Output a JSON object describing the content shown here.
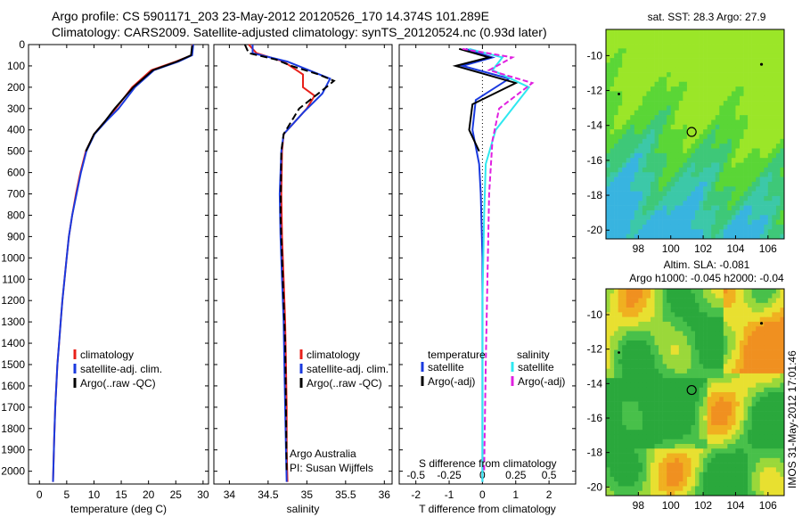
{
  "header": {
    "line1": "Argo profile: CS 5901171_203 23-May-2012 20120526_170 14.374S 101.289E",
    "line2": "Climatology: CARS2009. Satellite-adjusted climatology: synTS_20120524.nc (0.93d later)"
  },
  "colors": {
    "climatology": "#e8201a",
    "satellite": "#1a3adf",
    "argo": "#000000",
    "salinity_satellite": "#2ee8f0",
    "salinity_argo": "#e020e0"
  },
  "chart_data": [
    {
      "type": "line",
      "xlabel": "temperature (deg C)",
      "ylabel": "",
      "xlim": [
        -2,
        31
      ],
      "ylim": [
        2060,
        0
      ],
      "xticks": [
        0,
        5,
        10,
        15,
        20,
        25,
        30
      ],
      "yticks": [
        0,
        100,
        200,
        300,
        400,
        500,
        600,
        700,
        800,
        900,
        1000,
        1100,
        1200,
        1300,
        1400,
        1500,
        1600,
        1700,
        1800,
        1900,
        2000
      ],
      "legend": [
        "climatology",
        "satellite-adj. clim.",
        "Argo(..raw -QC)"
      ],
      "series": [
        {
          "name": "climatology",
          "color": "#e8201a",
          "x": [
            28.1,
            27.9,
            25.0,
            20.5,
            17.0,
            14.0,
            12.0,
            10.0,
            8.5,
            7.5,
            6.7,
            6.0,
            5.4,
            5.0,
            4.6,
            4.2,
            3.9,
            3.6,
            3.3,
            3.1,
            2.9,
            2.7,
            2.5
          ],
          "y": [
            0,
            50,
            80,
            120,
            200,
            300,
            360,
            420,
            500,
            600,
            700,
            800,
            900,
            1000,
            1100,
            1200,
            1300,
            1400,
            1500,
            1600,
            1700,
            1850,
            2050
          ]
        },
        {
          "name": "satellite-adj. clim.",
          "color": "#1a3adf",
          "x": [
            28.2,
            28.0,
            25.5,
            21.0,
            17.5,
            14.5,
            12.2,
            10.1,
            8.6,
            7.6,
            6.8,
            6.0,
            5.4,
            5.0,
            4.6,
            4.2,
            3.9,
            3.6,
            3.3,
            3.1,
            2.9,
            2.7,
            2.5
          ],
          "y": [
            0,
            50,
            80,
            120,
            200,
            300,
            360,
            420,
            500,
            600,
            700,
            800,
            900,
            1000,
            1100,
            1200,
            1300,
            1400,
            1500,
            1600,
            1700,
            1850,
            2050
          ]
        },
        {
          "name": "Argo(..raw -QC)",
          "color": "#000000",
          "x": [
            28.0,
            27.8,
            25.2,
            20.8,
            17.2,
            13.8,
            12.0,
            10.0,
            8.5
          ],
          "y": [
            5,
            50,
            80,
            120,
            200,
            300,
            360,
            420,
            500
          ]
        }
      ]
    },
    {
      "type": "line",
      "xlabel": "salinity",
      "xlim": [
        33.8,
        36.1
      ],
      "ylim": [
        2060,
        0
      ],
      "xticks": [
        34,
        34.5,
        35,
        35.5,
        36
      ],
      "xticklabels": [
        "34",
        "34.5",
        "35",
        "35.5",
        "36"
      ],
      "legend": [
        "climatology",
        "satellite-adj. clim.",
        "Argo(..raw -QC)"
      ],
      "annotations": [
        "Argo Australia",
        "PI: Susan Wijffels"
      ],
      "series": [
        {
          "name": "climatology",
          "color": "#e8201a",
          "x": [
            34.25,
            34.35,
            34.7,
            34.95,
            34.95,
            35.1,
            35.0,
            34.85,
            34.7,
            34.68,
            34.67,
            34.68,
            34.7,
            34.72,
            34.73,
            34.74,
            34.74,
            34.75
          ],
          "y": [
            0,
            40,
            80,
            140,
            200,
            240,
            300,
            360,
            420,
            500,
            700,
            900,
            1100,
            1300,
            1500,
            1700,
            1900,
            2050
          ]
        },
        {
          "name": "satellite-adj. clim.",
          "color": "#1a3adf",
          "x": [
            34.3,
            34.3,
            34.75,
            35.3,
            35.2,
            34.95,
            34.7,
            34.67,
            34.65,
            34.66,
            34.68,
            34.7,
            34.71,
            34.72,
            34.73,
            34.74
          ],
          "y": [
            0,
            40,
            80,
            160,
            230,
            320,
            420,
            500,
            700,
            900,
            1100,
            1300,
            1500,
            1700,
            1900,
            2050
          ]
        },
        {
          "name": "Argo(..raw -QC)",
          "color": "#000000",
          "x": [
            34.2,
            34.25,
            34.6,
            34.8,
            35.15,
            35.35,
            35.25,
            34.9,
            34.7,
            34.67,
            34.66,
            34.69,
            34.72,
            34.73,
            34.74
          ],
          "y": [
            0,
            40,
            70,
            100,
            140,
            170,
            200,
            300,
            420,
            500,
            800,
            1100,
            1400,
            1700,
            2000
          ]
        }
      ]
    },
    {
      "type": "line",
      "xlabel": "T difference from climatology",
      "xlabel_top": "S difference from climatology",
      "xlim": [
        -2.5,
        2.8
      ],
      "ylim": [
        2060,
        0
      ],
      "xticks": [
        -2,
        -1,
        0,
        1,
        2
      ],
      "top_ticklabels": [
        "-0.5",
        "-0.25",
        "0",
        "0.25",
        "0.5"
      ],
      "legend_headers": [
        "temperature",
        "salinity"
      ],
      "legend": [
        "satellite",
        "Argo(-adj)",
        "satellite",
        "Argo(-adj)"
      ],
      "series": [
        {
          "name": "satellite",
          "group": "temperature",
          "color": "#1a3adf",
          "x": [
            -0.5,
            0.3,
            -0.6,
            0.8,
            -0.2,
            -0.3,
            -0.1,
            -0.05,
            0.0,
            0.0,
            0.0,
            0.0
          ],
          "y": [
            20,
            60,
            100,
            160,
            260,
            400,
            560,
            700,
            1000,
            1300,
            1600,
            2050
          ]
        },
        {
          "name": "Argo(-adj)",
          "group": "temperature",
          "color": "#000000",
          "x": [
            -0.7,
            0.2,
            -0.8,
            1.0,
            -0.3,
            -0.4,
            -0.1
          ],
          "y": [
            20,
            60,
            100,
            180,
            280,
            400,
            500
          ]
        },
        {
          "name": "satellite",
          "group": "salinity",
          "color": "#2ee8f0",
          "x": [
            -0.4,
            0.6,
            0.3,
            1.4,
            0.9,
            0.4,
            0.1,
            0.05,
            0.0,
            0.0,
            0.0
          ],
          "y": [
            20,
            60,
            120,
            200,
            300,
            400,
            560,
            800,
            1200,
            1600,
            2050
          ]
        },
        {
          "name": "Argo(-adj)",
          "group": "salinity",
          "color": "#e020e0",
          "x": [
            -0.6,
            0.9,
            0.2,
            1.5,
            0.5,
            0.3,
            0.2,
            0.15,
            0.1,
            0.05
          ],
          "y": [
            20,
            60,
            120,
            180,
            300,
            450,
            700,
            1100,
            1500,
            2000
          ]
        }
      ]
    },
    {
      "type": "heatmap",
      "title": "sat. SST: 28.3 Argo: 27.9",
      "xlim": [
        96,
        107
      ],
      "ylim": [
        -20.5,
        -8.5
      ],
      "xticks": [
        98,
        100,
        102,
        104,
        106
      ],
      "yticks": [
        -10,
        -12,
        -14,
        -16,
        -18,
        -20
      ]
    },
    {
      "type": "heatmap",
      "title": "Altim. SLA: -0.081",
      "subtitle": "Argo h1000: -0.045 h2000: -0.04",
      "xlim": [
        96,
        107
      ],
      "ylim": [
        -20.5,
        -8.5
      ],
      "xticks": [
        98,
        100,
        102,
        104,
        106
      ],
      "yticks": [
        -10,
        -12,
        -14,
        -16,
        -18,
        -20
      ]
    }
  ],
  "stamp": "IMOS 31-May-2012 17:01:46"
}
